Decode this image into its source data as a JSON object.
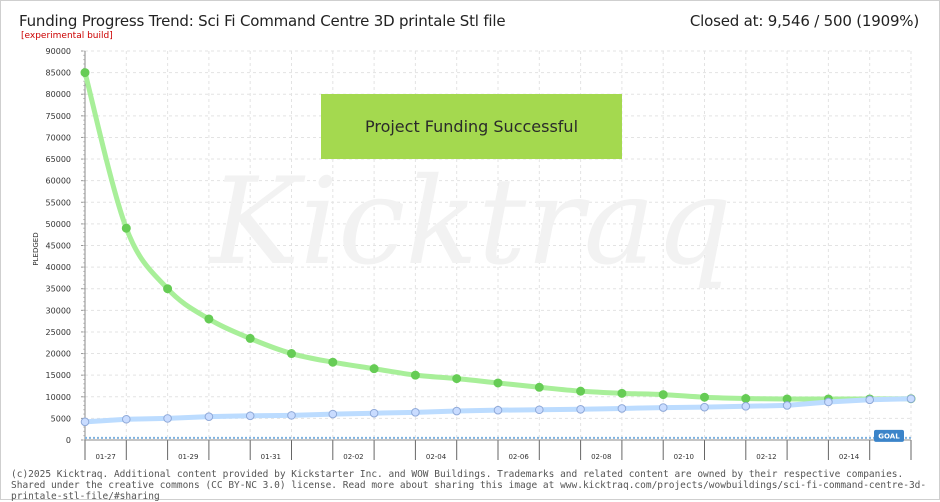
{
  "header": {
    "title": "Funding Progress Trend: Sci Fi Command Centre 3D printale Stl file",
    "subtitle": "[experimental build]",
    "closed_at": "Closed at: 9,546 / 500 (1909%)"
  },
  "banner": {
    "text": "Project Funding Successful"
  },
  "watermark": {
    "text": "Kicktraq"
  },
  "goal_label": "GOAL",
  "footer": {
    "line1": "(c)2025 Kicktraq. Additional content provided by Kickstarter Inc. and WOW Buildings. Trademarks and related content are owned by their respective companies.",
    "line2": "Shared under the creative commons (CC BY-NC 3.0) license. Read more about sharing this image at www.kicktraq.com/projects/wowbuildings/sci-fi-command-centre-3d-printale-stl-file/#sharing"
  },
  "colors": {
    "trend_line": "#a8ef99",
    "trend_marker": "#66cc55",
    "pledged_line": "#bcdcff",
    "pledged_marker": "#c9dcff",
    "goal_line": "#7fb2e0",
    "goal_badge": "#3b84c9",
    "banner": "#a4d94f",
    "grid": "#e3e3e3"
  },
  "chart_data": {
    "type": "line",
    "ylabel": "PLEDGED",
    "ylim": [
      0,
      90000
    ],
    "yticks": [
      0,
      5000,
      10000,
      15000,
      20000,
      25000,
      30000,
      35000,
      40000,
      45000,
      50000,
      55000,
      60000,
      65000,
      70000,
      75000,
      80000,
      85000,
      90000
    ],
    "x": [
      "01-26",
      "01-27",
      "01-28",
      "01-29",
      "01-30",
      "01-31",
      "02-01",
      "02-02",
      "02-03",
      "02-04",
      "02-05",
      "02-06",
      "02-07",
      "02-08",
      "02-09",
      "02-10",
      "02-11",
      "02-12",
      "02-13",
      "02-14",
      "02-15"
    ],
    "xtick_labels": [
      "01-27",
      "01-29",
      "01-31",
      "02-02",
      "02-04",
      "02-06",
      "02-08",
      "02-10",
      "02-12",
      "02-14"
    ],
    "goal": 500,
    "series": [
      {
        "role": "trend",
        "values": [
          85000,
          49000,
          35000,
          28000,
          23500,
          20000,
          18000,
          16500,
          15000,
          14200,
          13200,
          12200,
          11300,
          10800,
          10500,
          9900,
          9600,
          9500,
          9500,
          9500,
          9546
        ]
      },
      {
        "role": "pledged",
        "values": [
          4200,
          4800,
          5000,
          5400,
          5600,
          5700,
          6000,
          6200,
          6400,
          6700,
          6900,
          7000,
          7100,
          7300,
          7500,
          7600,
          7800,
          8000,
          8800,
          9300,
          9546
        ]
      }
    ]
  }
}
